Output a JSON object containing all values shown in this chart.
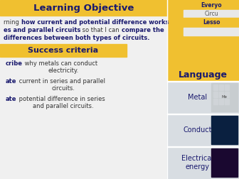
{
  "title": "Learning Objective",
  "title_bg": "#f0c030",
  "title_color": "#1a1a6e",
  "main_bg": "#f0f0f0",
  "right_panel_bg": "#f0c030",
  "body_text_lines": [
    [
      "rning ",
      "how current and potential difference works"
    ],
    [
      "es and parallel circuits",
      " so that I can ",
      "compare the"
    ],
    [
      "differences between both types of circuits."
    ]
  ],
  "body_bold_flags": [
    [
      false,
      true
    ],
    [
      true,
      false,
      true
    ],
    [
      true
    ]
  ],
  "sc_title": "Success criteria",
  "sc_bg": "#f0c030",
  "sc_items": [
    [
      [
        "cribe",
        true
      ],
      [
        " why metals can conduct",
        false
      ]
    ],
    [
      [
        "electricity.",
        false
      ]
    ],
    [
      [
        "ate",
        true
      ],
      [
        " current in series and parallel",
        false
      ]
    ],
    [
      [
        "circuits.",
        false
      ]
    ],
    [
      [
        "ate",
        true
      ],
      [
        " potential difference in series",
        false
      ]
    ],
    [
      [
        "and parallel circuits.",
        false
      ]
    ]
  ],
  "lang_title": "Language",
  "lang_items": [
    {
      "term": "Metal",
      "img_color": "#c8cdd0",
      "img_text": "Me"
    },
    {
      "term": "Conduct",
      "img_color": "#0a2040"
    },
    {
      "term": "Electrical\nenergy",
      "img_color": "#1a0830"
    }
  ],
  "tab_labels": [
    "Everyo",
    "Circu",
    "Lesso"
  ],
  "tab_bgs": [
    "#f0c030",
    "#e8e8e8",
    "#f0c030"
  ],
  "tab_text_colors": [
    "#1a1a6e",
    "#555555",
    "#1a1a6e"
  ],
  "tab_bold": [
    true,
    false,
    true
  ],
  "white_box_below_lesso": "#e8e8e8",
  "lang_item_bg": "#e0e4e8",
  "lang_divider": "#ffffff",
  "border_color": "#aaaaaa"
}
